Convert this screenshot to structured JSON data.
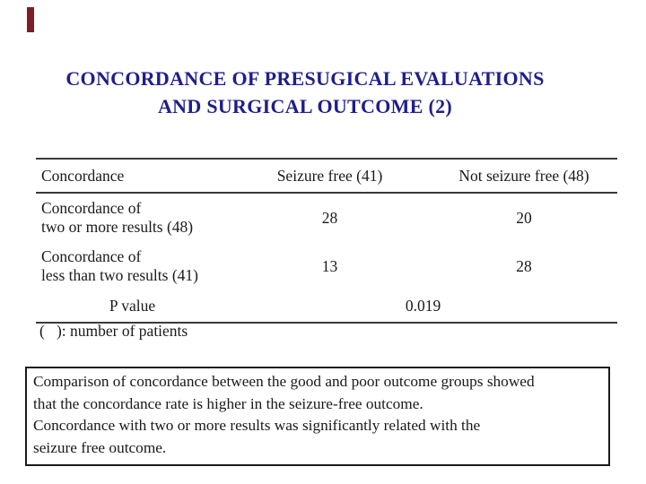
{
  "slide": {
    "kind": "presentation-slide",
    "background": "#ffffff"
  },
  "colors": {
    "title_navy": "#1e1e8a",
    "accent_maroon": "#7b2028",
    "table_rule": "#3a3a3a",
    "body_text": "#1a1a1a"
  },
  "title": {
    "line1": "CONCORDANCE OF PRESUGICAL EVALUATIONS",
    "line2": "AND SURGICAL OUTCOME (2)"
  },
  "table": {
    "header": {
      "col1": "Concordance",
      "col2": "Seizure free (41)",
      "col3": "Not seizure free (48)"
    },
    "rows": [
      {
        "label_line1": "Concordance of",
        "label_line2": "two or more results (48)",
        "seizure_free": "28",
        "not_seizure_free": "20"
      },
      {
        "label_line1": "Concordance of",
        "label_line2": "less than two results (41)",
        "seizure_free": "13",
        "not_seizure_free": "28"
      }
    ],
    "p_row": {
      "label": "P value",
      "value": "0.019"
    },
    "footnote": "(   ): number of patients"
  },
  "note_box": {
    "lines": [
      "Comparison of concordance between the good and poor outcome groups showed",
      "that the concordance rate is higher in the seizure-free outcome.",
      "Concordance with two or more results was significantly related with the",
      "seizure free outcome."
    ]
  }
}
